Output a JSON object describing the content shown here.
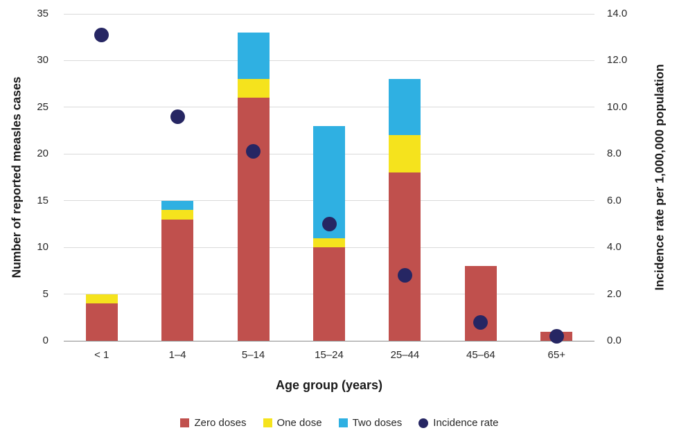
{
  "chart_data": {
    "type": "bar",
    "subtype": "stacked-bar-with-scatter-overlay",
    "title": "",
    "categories": [
      "< 1",
      "1–4",
      "5–14",
      "15–24",
      "25–44",
      "45–64",
      "65+"
    ],
    "series": [
      {
        "name": "Zero doses",
        "type": "bar-stack",
        "axis": "left",
        "color": "#c0504d",
        "values": [
          4,
          13,
          26,
          10,
          18,
          8,
          1
        ]
      },
      {
        "name": "One dose",
        "type": "bar-stack",
        "axis": "left",
        "color": "#f5e31d",
        "values": [
          1,
          1,
          2,
          1,
          4,
          0,
          0
        ]
      },
      {
        "name": "Two doses",
        "type": "bar-stack",
        "axis": "left",
        "color": "#2fафe2",
        "values": [
          0,
          1,
          5,
          12,
          6,
          0,
          0
        ]
      },
      {
        "name": "Incidence rate",
        "type": "scatter",
        "axis": "right",
        "color": "#262663",
        "values": [
          13.1,
          9.6,
          8.1,
          5.0,
          2.8,
          0.8,
          0.2
        ]
      }
    ],
    "series_colors_fix": {
      "two_doses": "#2fb0e2"
    },
    "xlabel": "Age group (years)",
    "ylabel_left": "Number of reported measles cases",
    "ylabel_right": "Incidence rate per 1,000,000 population",
    "y_left": {
      "min": 0,
      "max": 35,
      "step": 5,
      "tick_labels": [
        "0",
        "5",
        "10",
        "15",
        "20",
        "25",
        "30",
        "35"
      ]
    },
    "y_right": {
      "min": 0,
      "max": 14,
      "step": 2,
      "tick_labels": [
        "0.0",
        "2.0",
        "4.0",
        "6.0",
        "8.0",
        "10.0",
        "12.0",
        "14.0"
      ]
    },
    "grid": true,
    "legend_position": "bottom"
  }
}
